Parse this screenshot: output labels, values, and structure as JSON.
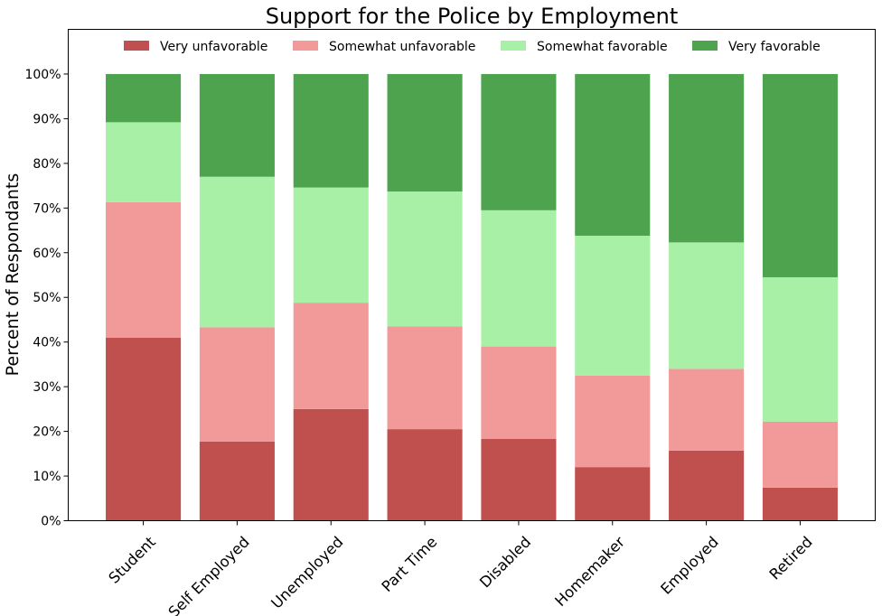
{
  "chart_data": {
    "type": "bar",
    "stacked": true,
    "title": "Support for the Police by Employment",
    "xlabel": "",
    "ylabel": "Percent of Respondants",
    "ylim": [
      0,
      110
    ],
    "yticks": [
      0,
      10,
      20,
      30,
      40,
      50,
      60,
      70,
      80,
      90,
      100
    ],
    "ytick_labels": [
      "0%",
      "10%",
      "20%",
      "30%",
      "40%",
      "50%",
      "60%",
      "70%",
      "80%",
      "90%",
      "100%"
    ],
    "categories": [
      "Student",
      "Self Employed",
      "Unemployed",
      "Part Time",
      "Disabled",
      "Homemaker",
      "Employed",
      "Retired"
    ],
    "legend_position": "top",
    "grid": false,
    "series": [
      {
        "name": "Very unfavorable",
        "color": "#c0504d",
        "values": [
          41.0,
          17.7,
          25.0,
          20.5,
          18.3,
          12.0,
          15.7,
          7.4
        ]
      },
      {
        "name": "Somewhat unfavorable",
        "color": "#f19a99",
        "values": [
          30.3,
          25.6,
          23.8,
          23.0,
          20.7,
          20.5,
          18.3,
          14.8
        ]
      },
      {
        "name": "Somewhat favorable",
        "color": "#a8f0a5",
        "values": [
          17.9,
          33.7,
          25.8,
          30.2,
          30.5,
          31.3,
          28.3,
          32.3
        ]
      },
      {
        "name": "Very favorable",
        "color": "#4ea34e",
        "values": [
          10.8,
          23.0,
          25.4,
          26.3,
          30.5,
          36.2,
          37.7,
          45.5
        ]
      }
    ]
  }
}
